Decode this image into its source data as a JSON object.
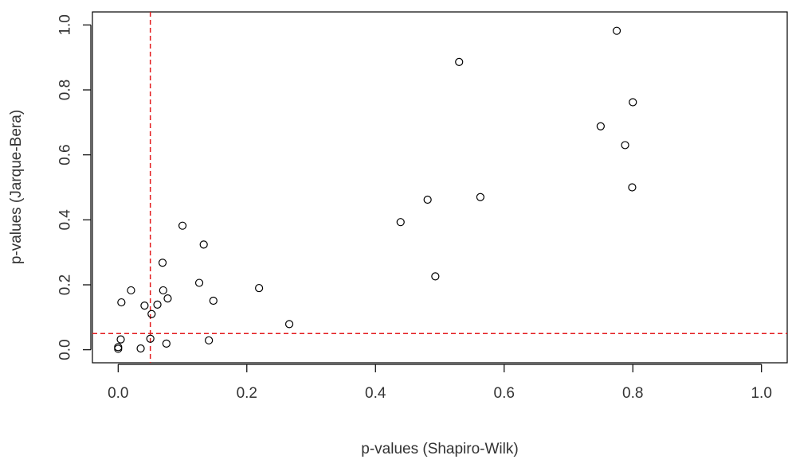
{
  "chart_data": {
    "type": "scatter",
    "title": "",
    "xlabel": "p-values (Shapiro-Wilk)",
    "ylabel": "p-values (Jarque-Bera)",
    "xlim": [
      -0.04,
      1.04
    ],
    "ylim": [
      -0.04,
      1.04
    ],
    "xticks": [
      0.0,
      0.2,
      0.4,
      0.6,
      0.8,
      1.0
    ],
    "yticks": [
      0.0,
      0.2,
      0.4,
      0.6,
      0.8,
      1.0
    ],
    "xtick_labels": [
      "0.0",
      "0.2",
      "0.4",
      "0.6",
      "0.8",
      "1.0"
    ],
    "ytick_labels": [
      "0.0",
      "0.2",
      "0.4",
      "0.6",
      "0.8",
      "1.0"
    ],
    "grid": false,
    "reference_lines": [
      {
        "orientation": "vertical",
        "value": 0.05,
        "style": "dashed",
        "color": "#e31a1c"
      },
      {
        "orientation": "horizontal",
        "value": 0.05,
        "style": "dashed",
        "color": "#e31a1c"
      }
    ],
    "points": [
      {
        "x": 0.0,
        "y": 0.003
      },
      {
        "x": 0.0,
        "y": 0.008
      },
      {
        "x": 0.004,
        "y": 0.032
      },
      {
        "x": 0.005,
        "y": 0.146
      },
      {
        "x": 0.02,
        "y": 0.183
      },
      {
        "x": 0.035,
        "y": 0.004
      },
      {
        "x": 0.041,
        "y": 0.136
      },
      {
        "x": 0.05,
        "y": 0.034
      },
      {
        "x": 0.052,
        "y": 0.11
      },
      {
        "x": 0.061,
        "y": 0.139
      },
      {
        "x": 0.069,
        "y": 0.268
      },
      {
        "x": 0.07,
        "y": 0.183
      },
      {
        "x": 0.075,
        "y": 0.019
      },
      {
        "x": 0.077,
        "y": 0.158
      },
      {
        "x": 0.1,
        "y": 0.382
      },
      {
        "x": 0.126,
        "y": 0.206
      },
      {
        "x": 0.133,
        "y": 0.324
      },
      {
        "x": 0.141,
        "y": 0.029
      },
      {
        "x": 0.148,
        "y": 0.151
      },
      {
        "x": 0.219,
        "y": 0.19
      },
      {
        "x": 0.266,
        "y": 0.079
      },
      {
        "x": 0.439,
        "y": 0.393
      },
      {
        "x": 0.481,
        "y": 0.462
      },
      {
        "x": 0.493,
        "y": 0.226
      },
      {
        "x": 0.53,
        "y": 0.886
      },
      {
        "x": 0.563,
        "y": 0.47
      },
      {
        "x": 0.75,
        "y": 0.688
      },
      {
        "x": 0.775,
        "y": 0.982
      },
      {
        "x": 0.788,
        "y": 0.63
      },
      {
        "x": 0.799,
        "y": 0.5
      },
      {
        "x": 0.8,
        "y": 0.762
      }
    ],
    "colors": {
      "points": "#000000",
      "reference": "#e31a1c",
      "axis": "#000000"
    }
  }
}
